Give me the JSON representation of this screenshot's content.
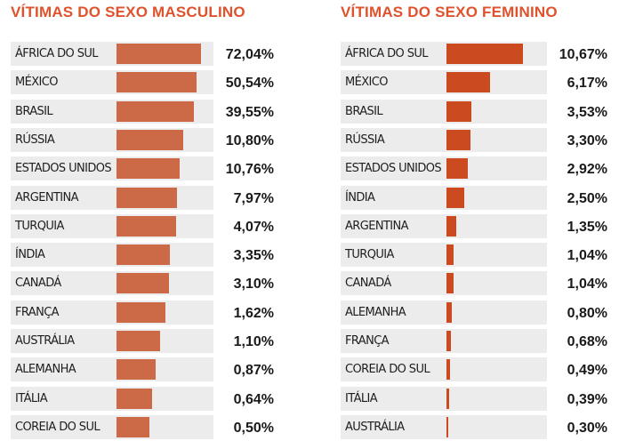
{
  "chart_data": [
    {
      "type": "bar",
      "orientation": "horizontal",
      "title": "VÍTIMAS DO SEXO MASCULINO",
      "categories": [
        "ÁFRICA DO SUL",
        "MÉXICO",
        "BRASIL",
        "RÚSSIA",
        "ESTADOS UNIDOS",
        "ARGENTINA",
        "TURQUIA",
        "ÍNDIA",
        "CANADÁ",
        "FRANÇA",
        "AUSTRÁLIA",
        "ALEMANHA",
        "ITÁLIA",
        "COREIA DO SUL"
      ],
      "values": [
        72.04,
        50.54,
        39.55,
        10.8,
        10.76,
        7.97,
        4.07,
        3.35,
        3.1,
        1.62,
        1.1,
        0.87,
        0.64,
        0.5
      ],
      "labels": [
        "72,04%",
        "50,54%",
        "39,55%",
        "10,80%",
        "10,76%",
        "7,97%",
        "4,07%",
        "3,35%",
        "3,10%",
        "1,62%",
        "1,10%",
        "0,87%",
        "0,64%",
        "0,50%"
      ],
      "bar_lengths": [
        1.0,
        0.946,
        0.918,
        0.793,
        0.75,
        0.711,
        0.706,
        0.633,
        0.623,
        0.574,
        0.515,
        0.458,
        0.419,
        0.385
      ],
      "color": "#cc6a48",
      "unit": "%"
    },
    {
      "type": "bar",
      "orientation": "horizontal",
      "title": "VÍTIMAS DO SEXO FEMININO",
      "categories": [
        "ÁFRICA DO SUL",
        "MÉXICO",
        "BRASIL",
        "RÚSSIA",
        "ESTADOS UNIDOS",
        "ÍNDIA",
        "ARGENTINA",
        "TURQUIA",
        "CANADÁ",
        "ALEMANHA",
        "FRANÇA",
        "COREIA DO SUL",
        "ITÁLIA",
        "AUSTRÁLIA"
      ],
      "values": [
        10.67,
        6.17,
        3.53,
        3.3,
        2.92,
        2.5,
        1.35,
        1.04,
        1.04,
        0.8,
        0.68,
        0.49,
        0.39,
        0.3
      ],
      "labels": [
        "10,67%",
        "6,17%",
        "3,53%",
        "3,30%",
        "2,92%",
        "2,50%",
        "1,35%",
        "1,04%",
        "1,04%",
        "0,80%",
        "0,68%",
        "0,49%",
        "0,39%",
        "0,30%"
      ],
      "bar_lengths": [
        1.0,
        0.575,
        0.33,
        0.31,
        0.274,
        0.233,
        0.126,
        0.095,
        0.095,
        0.075,
        0.063,
        0.046,
        0.036,
        0.028
      ],
      "color": "#cc4a1f",
      "unit": "%"
    }
  ]
}
